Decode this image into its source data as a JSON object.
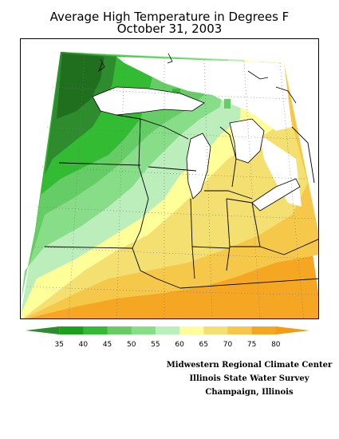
{
  "title": {
    "line1": "Average High Temperature in Degrees F",
    "line2": "October 31, 2003"
  },
  "legend": {
    "ticks": [
      "35",
      "40",
      "45",
      "50",
      "55",
      "60",
      "65",
      "70",
      "75",
      "80"
    ],
    "colors": [
      "#2e8b2e",
      "#1aa31a",
      "#33bb33",
      "#66cc66",
      "#88dd88",
      "#bbeebb",
      "#ffff99",
      "#f3e070",
      "#f5c84a",
      "#f5a623",
      "#f39c12"
    ]
  },
  "credits": {
    "line1": "Midwestern Regional Climate Center",
    "line2": "Illinois State Water Survey",
    "line3": "Champaign, Illinois"
  }
}
